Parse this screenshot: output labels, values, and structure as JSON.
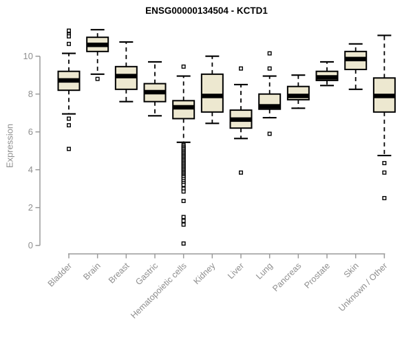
{
  "title": "ENSG00000134504 - KCTD1",
  "colors": {
    "background": "#ffffff",
    "box_fill": "#ede8d0",
    "box_stroke": "#000000",
    "median": "#000000",
    "whisker": "#000000",
    "outlier_stroke": "#000000",
    "outlier_fill": "#ffffff",
    "axis_line": "#9a9a9a",
    "axis_text": "#8e8e8e",
    "title_text": "#000000"
  },
  "chart_data": {
    "type": "boxplot",
    "title": "ENSG00000134504 - KCTD1",
    "xlabel": "",
    "ylabel": "Expression",
    "ylim": [
      0,
      11.5
    ],
    "yticks": [
      0,
      2,
      4,
      6,
      8,
      10
    ],
    "grid": false,
    "legend": "none",
    "categories": [
      "Bladder",
      "Brain",
      "Breast",
      "Gastric",
      "Hematopoietic cells",
      "Kidney",
      "Liver",
      "Lung",
      "Pancreas",
      "Prostate",
      "Skin",
      "Unknown / Other"
    ],
    "series": [
      {
        "name": "Bladder",
        "whisker_low": 6.95,
        "q1": 8.2,
        "median": 8.72,
        "q3": 9.2,
        "whisker_high": 10.15,
        "outliers": [
          11.35,
          11.15,
          11.05,
          10.65,
          6.7,
          6.35,
          5.1
        ]
      },
      {
        "name": "Brain",
        "whisker_low": 9.05,
        "q1": 10.25,
        "median": 10.6,
        "q3": 11.0,
        "whisker_high": 11.4,
        "outliers": [
          8.8
        ]
      },
      {
        "name": "Breast",
        "whisker_low": 7.6,
        "q1": 8.25,
        "median": 8.95,
        "q3": 9.45,
        "whisker_high": 10.75,
        "outliers": []
      },
      {
        "name": "Gastric",
        "whisker_low": 6.85,
        "q1": 7.6,
        "median": 8.1,
        "q3": 8.55,
        "whisker_high": 9.7,
        "outliers": []
      },
      {
        "name": "Hematopoietic cells",
        "whisker_low": 5.45,
        "q1": 6.7,
        "median": 7.3,
        "q3": 7.65,
        "whisker_high": 8.95,
        "outliers": [
          9.45,
          5.3,
          5.22,
          5.15,
          5.08,
          5.0,
          4.93,
          4.86,
          4.79,
          4.72,
          4.65,
          4.58,
          4.51,
          4.44,
          4.37,
          4.3,
          4.23,
          4.16,
          4.09,
          4.02,
          3.95,
          3.88,
          3.81,
          3.74,
          3.67,
          3.6,
          3.5,
          3.4,
          3.3,
          3.2,
          3.0,
          2.85,
          2.35,
          1.5,
          1.3,
          1.1,
          0.1
        ]
      },
      {
        "name": "Kidney",
        "whisker_low": 6.45,
        "q1": 7.05,
        "median": 7.9,
        "q3": 9.05,
        "whisker_high": 10.0,
        "outliers": []
      },
      {
        "name": "Liver",
        "whisker_low": 5.65,
        "q1": 6.2,
        "median": 6.65,
        "q3": 7.15,
        "whisker_high": 8.5,
        "outliers": [
          9.35,
          3.85
        ]
      },
      {
        "name": "Lung",
        "whisker_low": 6.75,
        "q1": 7.2,
        "median": 7.35,
        "q3": 8.0,
        "whisker_high": 8.95,
        "outliers": [
          10.15,
          9.35,
          5.9
        ]
      },
      {
        "name": "Pancreas",
        "whisker_low": 7.25,
        "q1": 7.7,
        "median": 7.9,
        "q3": 8.4,
        "whisker_high": 9.0,
        "outliers": []
      },
      {
        "name": "Prostate",
        "whisker_low": 8.45,
        "q1": 8.72,
        "median": 8.88,
        "q3": 9.2,
        "whisker_high": 9.7,
        "outliers": []
      },
      {
        "name": "Skin",
        "whisker_low": 8.25,
        "q1": 9.3,
        "median": 9.85,
        "q3": 10.25,
        "whisker_high": 10.65,
        "outliers": []
      },
      {
        "name": "Unknown / Other",
        "whisker_low": 4.75,
        "q1": 7.05,
        "median": 7.9,
        "q3": 8.85,
        "whisker_high": 11.1,
        "outliers": [
          4.35,
          3.85,
          2.5
        ]
      }
    ]
  }
}
